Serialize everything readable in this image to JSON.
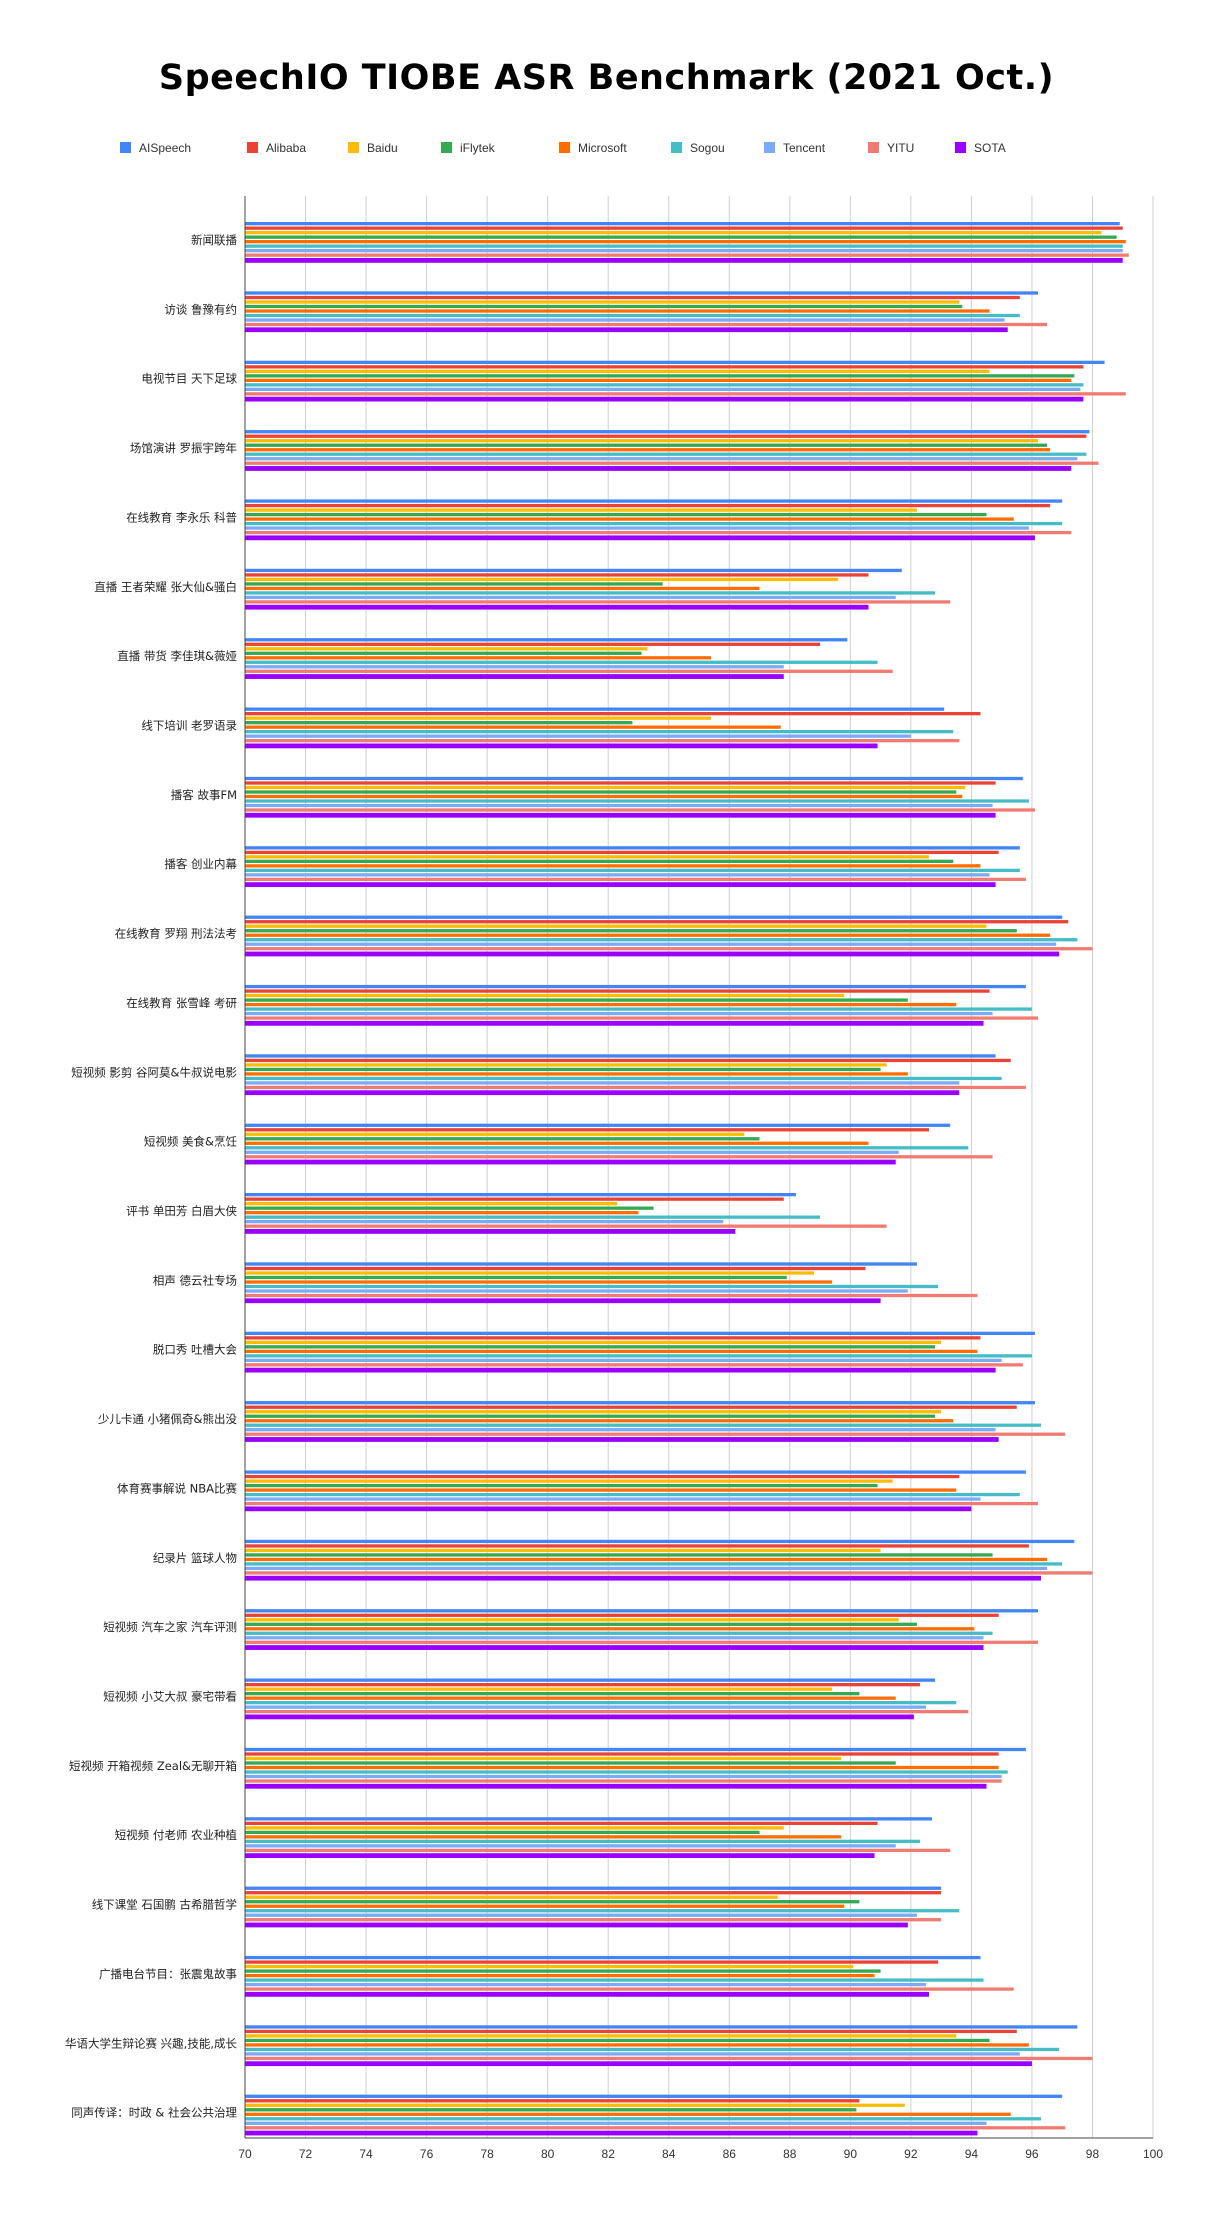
{
  "chart_data": {
    "type": "bar",
    "orientation": "horizontal",
    "title": "SpeechIO TIOBE ASR Benchmark (2021 Oct.)",
    "xlabel": "",
    "ylabel": "",
    "xlim": [
      70,
      100
    ],
    "xticks": [
      "70",
      "72",
      "74",
      "76",
      "78",
      "80",
      "82",
      "84",
      "86",
      "88",
      "90",
      "92",
      "94",
      "96",
      "98",
      "100"
    ],
    "grid": "vertical",
    "legend_position": "top",
    "categories": [
      "新闻联播",
      "访谈 鲁豫有约",
      "电视节目 天下足球",
      "场馆演讲 罗振宇跨年",
      "在线教育 李永乐 科普",
      "直播 王者荣耀 张大仙&骚白",
      "直播 带货 李佳琪&薇娅",
      "线下培训 老罗语录",
      "播客 故事FM",
      "播客 创业内幕",
      "在线教育 罗翔 刑法法考",
      "在线教育 张雪峰 考研",
      "短视频 影剪 谷阿莫&牛叔说电影",
      "短视频 美食&烹饪",
      "评书 单田芳 白眉大侠",
      "相声 德云社专场",
      "脱口秀 吐槽大会",
      "少儿卡通 小猪佩奇&熊出没",
      "体育赛事解说 NBA比赛",
      "纪录片 篮球人物",
      "短视频 汽车之家 汽车评测",
      "短视频 小艾大叔 豪宅带看",
      "短视频 开箱视频 Zeal&无聊开箱",
      "短视频 付老师 农业种植",
      "线下课堂 石国鹏 古希腊哲学",
      "广播电台节目：张震鬼故事",
      "华语大学生辩论赛 兴趣,技能,成长",
      "同声传译：时政 & 社会公共治理"
    ],
    "series": [
      {
        "name": "AISpeech",
        "color": "#4285f4",
        "values": [
          98.9,
          96.2,
          98.4,
          97.9,
          97.0,
          91.7,
          89.9,
          93.1,
          95.7,
          95.6,
          97.0,
          95.8,
          94.8,
          93.3,
          88.2,
          92.2,
          96.1,
          96.1,
          95.8,
          97.4,
          96.2,
          92.8,
          95.8,
          92.7,
          93.0,
          94.3,
          97.5,
          97.0
        ]
      },
      {
        "name": "Alibaba",
        "color": "#ea4335",
        "values": [
          99.0,
          95.6,
          97.7,
          97.8,
          96.6,
          90.6,
          89.0,
          94.3,
          94.8,
          94.9,
          97.2,
          94.6,
          95.3,
          92.6,
          87.8,
          90.5,
          94.3,
          95.5,
          93.6,
          95.9,
          94.9,
          92.3,
          94.9,
          90.9,
          93.0,
          92.9,
          95.5,
          90.3
        ]
      },
      {
        "name": "Baidu",
        "color": "#fbbc04",
        "values": [
          98.3,
          93.6,
          94.6,
          96.2,
          92.2,
          89.6,
          83.3,
          85.4,
          93.8,
          92.6,
          94.5,
          89.8,
          91.2,
          86.5,
          82.3,
          88.8,
          93.0,
          93.0,
          91.4,
          91.0,
          91.6,
          89.4,
          89.7,
          87.8,
          87.6,
          90.1,
          93.5,
          91.8
        ]
      },
      {
        "name": "iFlytek",
        "color": "#34a853",
        "values": [
          98.8,
          93.7,
          97.4,
          96.5,
          94.5,
          83.8,
          83.1,
          82.8,
          93.5,
          93.4,
          95.5,
          91.9,
          91.0,
          87.0,
          83.5,
          87.9,
          92.8,
          92.8,
          90.9,
          94.7,
          92.2,
          90.3,
          91.5,
          87.0,
          90.3,
          91.0,
          94.6,
          90.2
        ]
      },
      {
        "name": "Microsoft",
        "color": "#ff6d01",
        "values": [
          99.1,
          94.6,
          97.3,
          96.6,
          95.4,
          87.0,
          85.4,
          87.7,
          93.7,
          94.3,
          96.6,
          93.5,
          91.9,
          90.6,
          83.0,
          89.4,
          94.2,
          93.4,
          93.5,
          96.5,
          94.1,
          91.5,
          94.9,
          89.7,
          89.8,
          90.8,
          95.9,
          95.3
        ]
      },
      {
        "name": "Sogou",
        "color": "#46bdc6",
        "values": [
          99.0,
          95.6,
          97.7,
          97.8,
          97.0,
          92.8,
          90.9,
          93.4,
          95.9,
          95.6,
          97.5,
          96.0,
          95.0,
          93.9,
          89.0,
          92.9,
          96.0,
          96.3,
          95.6,
          97.0,
          94.7,
          93.5,
          95.2,
          92.3,
          93.6,
          94.4,
          96.9,
          96.3
        ]
      },
      {
        "name": "Tencent",
        "color": "#7baaf7",
        "values": [
          99.0,
          95.1,
          97.6,
          97.5,
          95.9,
          91.5,
          87.8,
          92.0,
          94.7,
          94.6,
          96.8,
          94.7,
          93.6,
          91.6,
          85.8,
          91.9,
          95.0,
          94.8,
          94.3,
          96.5,
          94.4,
          92.5,
          95.0,
          91.5,
          92.2,
          92.5,
          95.6,
          94.5
        ]
      },
      {
        "name": "YITU",
        "color": "#f07b72",
        "values": [
          99.2,
          96.5,
          99.1,
          98.2,
          97.3,
          93.3,
          91.4,
          93.6,
          96.1,
          95.8,
          98.0,
          96.2,
          95.8,
          94.7,
          91.2,
          94.2,
          95.7,
          97.1,
          96.2,
          98.0,
          96.2,
          93.9,
          95.0,
          93.3,
          93.0,
          95.4,
          98.0,
          97.1
        ]
      },
      {
        "name": "SOTA",
        "color": "#9900ff",
        "values": [
          99.0,
          95.2,
          97.7,
          97.3,
          96.1,
          90.6,
          87.8,
          90.9,
          94.8,
          94.8,
          96.9,
          94.4,
          93.6,
          91.5,
          86.2,
          91.0,
          94.8,
          94.9,
          94.0,
          96.3,
          94.4,
          92.1,
          94.5,
          90.8,
          91.9,
          92.6,
          96.0,
          94.2
        ]
      }
    ]
  }
}
